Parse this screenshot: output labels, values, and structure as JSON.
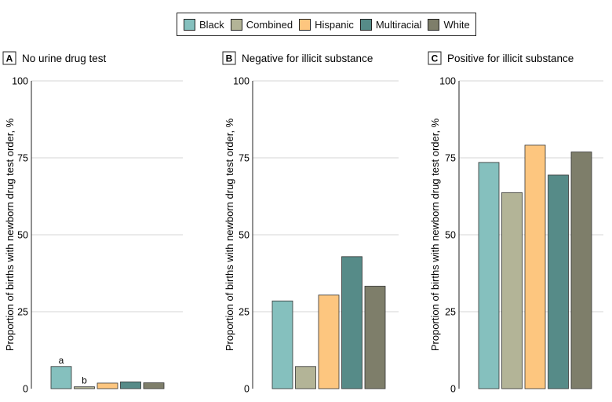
{
  "legend": [
    {
      "name": "Black",
      "color": "#85c0be"
    },
    {
      "name": "Combined",
      "color": "#b3b497"
    },
    {
      "name": "Hispanic",
      "color": "#fdc67f"
    },
    {
      "name": "Multiracial",
      "color": "#568b88"
    },
    {
      "name": "White",
      "color": "#7e7e6a"
    }
  ],
  "chart_data": [
    {
      "type": "bar",
      "panel": "A",
      "title": "No urine drug test",
      "ylabel": "Proportion of births with newborn drug test order, %",
      "ylim": [
        0,
        100
      ],
      "yticks": [
        "0",
        "25",
        "50",
        "75",
        "100"
      ],
      "grid": true,
      "series": [
        {
          "name": "Black",
          "value": 7.2,
          "annotation": "a"
        },
        {
          "name": "Combined",
          "value": 0.6,
          "annotation": "b"
        },
        {
          "name": "Hispanic",
          "value": 1.8,
          "annotation": ""
        },
        {
          "name": "Multiracial",
          "value": 2.2,
          "annotation": ""
        },
        {
          "name": "White",
          "value": 1.9,
          "annotation": ""
        }
      ]
    },
    {
      "type": "bar",
      "panel": "B",
      "title": "Negative for illicit substance",
      "ylabel": "Proportion of births with newborn drug test order, %",
      "ylim": [
        0,
        100
      ],
      "yticks": [
        "0",
        "25",
        "50",
        "75",
        "100"
      ],
      "grid": true,
      "series": [
        {
          "name": "Black",
          "value": 28.5,
          "annotation": ""
        },
        {
          "name": "Combined",
          "value": 7.2,
          "annotation": ""
        },
        {
          "name": "Hispanic",
          "value": 30.4,
          "annotation": ""
        },
        {
          "name": "Multiracial",
          "value": 42.9,
          "annotation": ""
        },
        {
          "name": "White",
          "value": 33.3,
          "annotation": ""
        }
      ]
    },
    {
      "type": "bar",
      "panel": "C",
      "title": "Positive for illicit substance",
      "ylabel": "Proportion of births with newborn drug test order, %",
      "ylim": [
        0,
        100
      ],
      "yticks": [
        "0",
        "25",
        "50",
        "75",
        "100"
      ],
      "grid": true,
      "series": [
        {
          "name": "Black",
          "value": 73.5,
          "annotation": ""
        },
        {
          "name": "Combined",
          "value": 63.7,
          "annotation": ""
        },
        {
          "name": "Hispanic",
          "value": 79.1,
          "annotation": ""
        },
        {
          "name": "Multiracial",
          "value": 69.4,
          "annotation": ""
        },
        {
          "name": "White",
          "value": 76.9,
          "annotation": ""
        }
      ]
    }
  ]
}
